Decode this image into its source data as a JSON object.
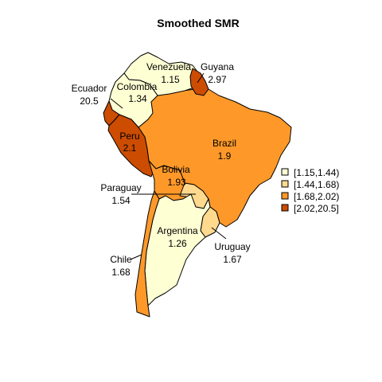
{
  "title": "Smoothed SMR",
  "palette": {
    "class1": "#FFFFD4",
    "class2": "#FED98E",
    "class3": "#FE9929",
    "class4": "#CC4C02"
  },
  "countries": [
    {
      "id": "venezuela",
      "name": "Venezuela",
      "value": "1.15",
      "class": "class1"
    },
    {
      "id": "guyana",
      "name": "Guyana",
      "value": "2.97",
      "class": "class4"
    },
    {
      "id": "colombia",
      "name": "Colombia",
      "value": "1.34",
      "class": "class1"
    },
    {
      "id": "ecuador",
      "name": "Ecuador",
      "value": "20.5",
      "class": "class4"
    },
    {
      "id": "peru",
      "name": "Peru",
      "value": "2.1",
      "class": "class4"
    },
    {
      "id": "brazil",
      "name": "Brazil",
      "value": "1.9",
      "class": "class3"
    },
    {
      "id": "bolivia",
      "name": "Bolivia",
      "value": "1.93",
      "class": "class3"
    },
    {
      "id": "paraguay",
      "name": "Paraguay",
      "value": "1.54",
      "class": "class2"
    },
    {
      "id": "argentina",
      "name": "Argentina",
      "value": "1.26",
      "class": "class1"
    },
    {
      "id": "uruguay",
      "name": "Uruguay",
      "value": "1.67",
      "class": "class2"
    },
    {
      "id": "chile",
      "name": "Chile",
      "value": "1.68",
      "class": "class3"
    }
  ],
  "legend": [
    {
      "label": "[1.15,1.44)",
      "class": "class1"
    },
    {
      "label": "[1.44,1.68)",
      "class": "class2"
    },
    {
      "label": "[1.68,2.02)",
      "class": "class3"
    },
    {
      "label": "[2.02,20.5]",
      "class": "class4"
    }
  ]
}
